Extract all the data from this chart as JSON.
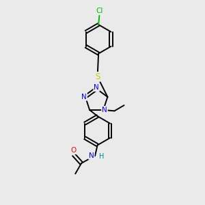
{
  "background_color": "#eaeaea",
  "bond_color": "#000000",
  "atom_colors": {
    "N": "#0000ff",
    "O": "#ff0000",
    "S": "#cccc00",
    "Cl": "#00bb00",
    "C": "#000000",
    "H": "#008888"
  },
  "figsize": [
    3.0,
    3.0
  ],
  "dpi": 100
}
